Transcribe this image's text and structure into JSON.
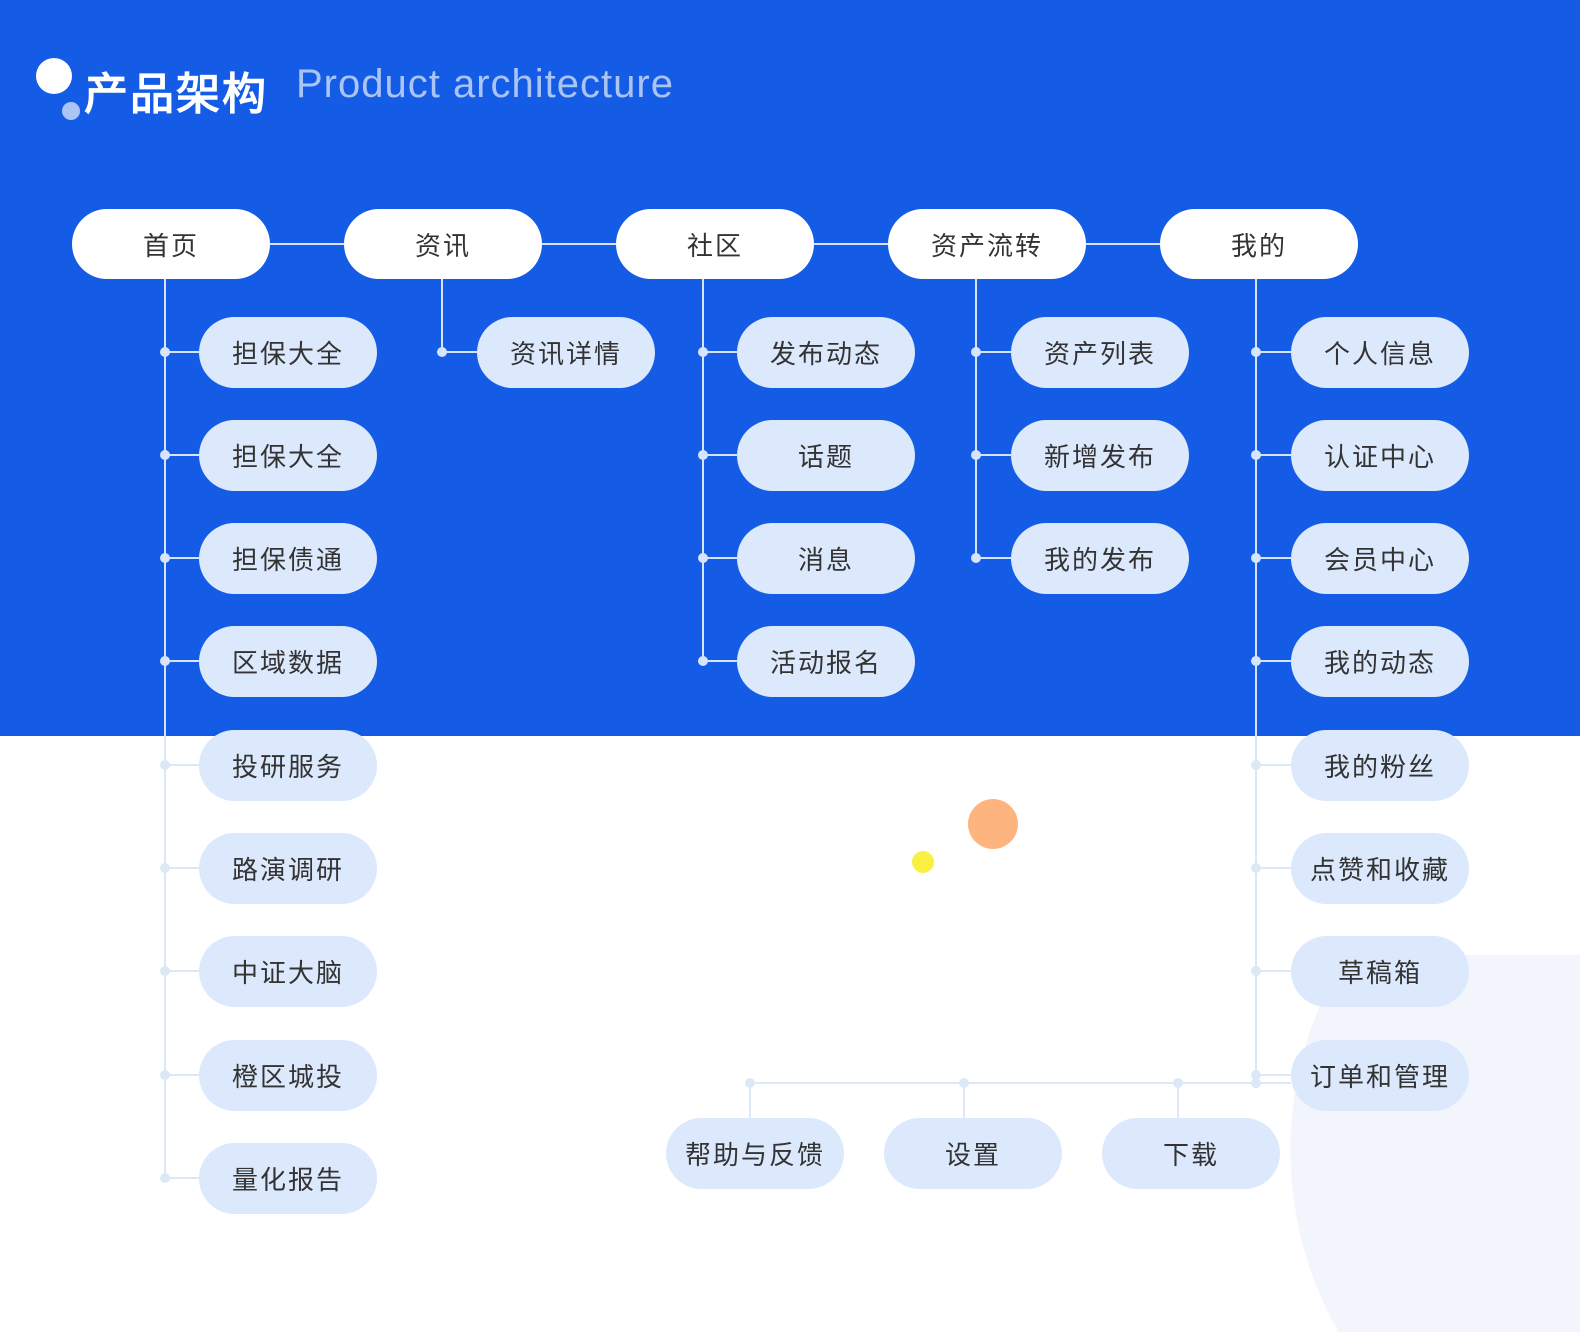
{
  "header": {
    "title_cn": "产品架构",
    "title_en": "Product architecture"
  },
  "colors": {
    "background_top": "#145BE6",
    "node_top": "#FFFFFF",
    "node_sub": "#DCE9FD",
    "accent_orange": "#FDB47E",
    "accent_yellow": "#F8F043"
  },
  "columns": [
    {
      "label": "首页",
      "children": [
        "担保大全",
        "担保大全",
        "担保债通",
        "区域数据",
        "投研服务",
        "路演调研",
        "中证大脑",
        "橙区城投",
        "量化报告"
      ]
    },
    {
      "label": "资讯",
      "children": [
        "资讯详情"
      ]
    },
    {
      "label": "社区",
      "children": [
        "发布动态",
        "话题",
        "消息",
        "活动报名"
      ]
    },
    {
      "label": "资产流转",
      "children": [
        "资产列表",
        "新增发布",
        "我的发布"
      ]
    },
    {
      "label": "我的",
      "children": [
        "个人信息",
        "认证中心",
        "会员中心",
        "我的动态",
        "我的粉丝",
        "点赞和收藏",
        "草稿箱",
        "订单和管理"
      ],
      "extra_children": [
        "帮助与反馈",
        "设置",
        "下载"
      ]
    }
  ]
}
